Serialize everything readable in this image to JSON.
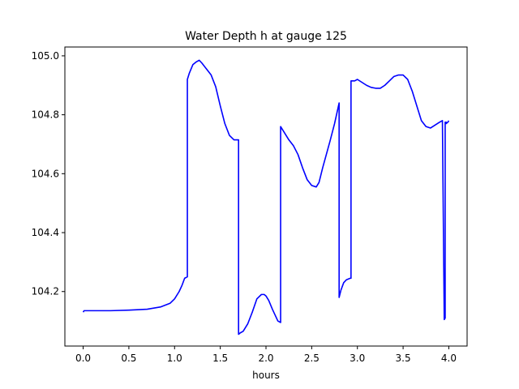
{
  "chart_data": {
    "type": "line",
    "title": "Water Depth h at gauge 125",
    "xlabel": "hours",
    "ylabel": "",
    "xlim": [
      -0.2,
      4.2
    ],
    "ylim": [
      104.015,
      105.03
    ],
    "xticks": [
      0.0,
      0.5,
      1.0,
      1.5,
      2.0,
      2.5,
      3.0,
      3.5,
      4.0
    ],
    "xtick_labels": [
      "0.0",
      "0.5",
      "1.0",
      "1.5",
      "2.0",
      "2.5",
      "3.0",
      "3.5",
      "4.0"
    ],
    "yticks": [
      104.2,
      104.4,
      104.6,
      104.8,
      105.0
    ],
    "ytick_labels": [
      "104.2",
      "104.4",
      "104.6",
      "104.8",
      "105.0"
    ],
    "grid": false,
    "line_color": "#0000ff",
    "series": [
      {
        "x": [
          0.0,
          0.01,
          0.1,
          0.3,
          0.5,
          0.7,
          0.85,
          0.95,
          1.0,
          1.05,
          1.08,
          1.11,
          1.14,
          1.14,
          1.16,
          1.2,
          1.24,
          1.27,
          1.3,
          1.35,
          1.4,
          1.45,
          1.5,
          1.55,
          1.6,
          1.65,
          1.7,
          1.7,
          1.72,
          1.75,
          1.8,
          1.85,
          1.9,
          1.95,
          1.98,
          2.0,
          2.03,
          2.07,
          2.1,
          2.13,
          2.16,
          2.16,
          2.2,
          2.25,
          2.3,
          2.35,
          2.4,
          2.45,
          2.5,
          2.55,
          2.58,
          2.62,
          2.66,
          2.7,
          2.75,
          2.8,
          2.8,
          2.82,
          2.85,
          2.88,
          2.92,
          2.93,
          2.93,
          2.97,
          3.0,
          3.05,
          3.1,
          3.15,
          3.2,
          3.25,
          3.3,
          3.35,
          3.4,
          3.45,
          3.5,
          3.55,
          3.6,
          3.65,
          3.7,
          3.75,
          3.8,
          3.85,
          3.9,
          3.93,
          3.95,
          3.96,
          3.96,
          3.965,
          3.97,
          3.97,
          3.99,
          4.0
        ],
        "y": [
          104.13,
          104.135,
          104.135,
          104.135,
          104.137,
          104.14,
          104.148,
          104.16,
          104.175,
          104.2,
          104.22,
          104.245,
          104.25,
          104.92,
          104.94,
          104.97,
          104.98,
          104.985,
          104.975,
          104.955,
          104.935,
          104.895,
          104.83,
          104.77,
          104.73,
          104.715,
          104.715,
          104.055,
          104.06,
          104.065,
          104.09,
          104.13,
          104.175,
          104.19,
          104.19,
          104.185,
          104.17,
          104.14,
          104.12,
          104.1,
          104.095,
          104.76,
          104.74,
          104.715,
          104.695,
          104.665,
          104.62,
          104.58,
          104.56,
          104.555,
          104.57,
          104.62,
          104.665,
          104.71,
          104.77,
          104.84,
          104.18,
          104.205,
          104.23,
          104.24,
          104.245,
          104.245,
          104.915,
          104.915,
          104.92,
          104.91,
          104.9,
          104.893,
          104.89,
          104.89,
          104.9,
          104.915,
          104.93,
          104.935,
          104.935,
          104.92,
          104.88,
          104.83,
          104.78,
          104.76,
          104.755,
          104.765,
          104.775,
          104.78,
          104.105,
          104.11,
          104.775,
          104.77,
          104.775,
          104.77,
          104.775,
          104.78
        ]
      }
    ]
  }
}
